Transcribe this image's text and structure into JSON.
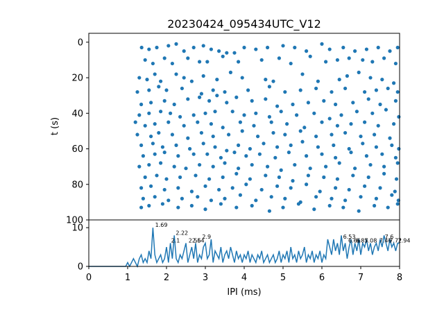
{
  "chart_data": [
    {
      "type": "scatter",
      "title": "20230424_095434UTC_V12",
      "ylabel": "t (s)",
      "xlim": [
        0,
        8
      ],
      "ylim": [
        100,
        -5
      ],
      "yticks": [
        0,
        20,
        40,
        60,
        80,
        100
      ],
      "y_inverted": true,
      "color": "#1f77b4",
      "points": [
        [
          1.36,
          3
        ],
        [
          1.55,
          4
        ],
        [
          1.75,
          3
        ],
        [
          2.05,
          2
        ],
        [
          2.25,
          1
        ],
        [
          2.45,
          5
        ],
        [
          2.7,
          3
        ],
        [
          2.95,
          2
        ],
        [
          3.15,
          4
        ],
        [
          3.35,
          5
        ],
        [
          3.55,
          6
        ],
        [
          3.75,
          6
        ],
        [
          4.0,
          3
        ],
        [
          4.3,
          4
        ],
        [
          4.6,
          3
        ],
        [
          5.0,
          2
        ],
        [
          5.3,
          3
        ],
        [
          5.6,
          5
        ],
        [
          6.0,
          1
        ],
        [
          6.2,
          4
        ],
        [
          6.55,
          3
        ],
        [
          6.85,
          5
        ],
        [
          7.15,
          4
        ],
        [
          7.45,
          3
        ],
        [
          7.75,
          5
        ],
        [
          7.95,
          3
        ],
        [
          1.45,
          10
        ],
        [
          1.65,
          12
        ],
        [
          1.95,
          9
        ],
        [
          2.15,
          12
        ],
        [
          2.55,
          9
        ],
        [
          2.85,
          11
        ],
        [
          3.05,
          11
        ],
        [
          3.45,
          8
        ],
        [
          3.85,
          11
        ],
        [
          4.45,
          10
        ],
        [
          4.9,
          9
        ],
        [
          5.2,
          12
        ],
        [
          5.7,
          8
        ],
        [
          6.1,
          11
        ],
        [
          6.4,
          10
        ],
        [
          6.7,
          9
        ],
        [
          7.05,
          10
        ],
        [
          7.3,
          11
        ],
        [
          7.6,
          9
        ],
        [
          7.9,
          12
        ],
        [
          1.3,
          20
        ],
        [
          1.5,
          21
        ],
        [
          1.7,
          18
        ],
        [
          1.85,
          22
        ],
        [
          2.25,
          18
        ],
        [
          2.45,
          20
        ],
        [
          2.65,
          22
        ],
        [
          2.95,
          19
        ],
        [
          3.3,
          21
        ],
        [
          3.65,
          17
        ],
        [
          3.95,
          20
        ],
        [
          4.55,
          21
        ],
        [
          4.75,
          22
        ],
        [
          5.5,
          18
        ],
        [
          5.9,
          22
        ],
        [
          6.45,
          21
        ],
        [
          6.65,
          19
        ],
        [
          6.95,
          17
        ],
        [
          7.25,
          20
        ],
        [
          7.55,
          21
        ],
        [
          7.85,
          23
        ],
        [
          1.25,
          28
        ],
        [
          1.55,
          27
        ],
        [
          1.8,
          25
        ],
        [
          2.0,
          27
        ],
        [
          2.4,
          26
        ],
        [
          2.9,
          29
        ],
        [
          3.2,
          27
        ],
        [
          3.5,
          28
        ],
        [
          4.1,
          27
        ],
        [
          4.65,
          25
        ],
        [
          5.05,
          28
        ],
        [
          5.45,
          27
        ],
        [
          5.85,
          26
        ],
        [
          6.25,
          28
        ],
        [
          6.6,
          26
        ],
        [
          7.1,
          28
        ],
        [
          7.4,
          27
        ],
        [
          7.7,
          26
        ],
        [
          7.95,
          28
        ],
        [
          1.35,
          35
        ],
        [
          1.6,
          34
        ],
        [
          1.95,
          33
        ],
        [
          2.2,
          35
        ],
        [
          2.55,
          32
        ],
        [
          2.85,
          31
        ],
        [
          3.1,
          33
        ],
        [
          3.3,
          30
        ],
        [
          3.55,
          34
        ],
        [
          3.8,
          31
        ],
        [
          4.2,
          33
        ],
        [
          4.55,
          32
        ],
        [
          4.85,
          36
        ],
        [
          5.25,
          35
        ],
        [
          5.65,
          34
        ],
        [
          6.05,
          33
        ],
        [
          6.35,
          35
        ],
        [
          6.8,
          34
        ],
        [
          7.2,
          32
        ],
        [
          7.5,
          35
        ],
        [
          7.9,
          33
        ],
        [
          1.3,
          41
        ],
        [
          1.55,
          40
        ],
        [
          1.85,
          39
        ],
        [
          2.1,
          40
        ],
        [
          2.35,
          42
        ],
        [
          2.7,
          41
        ],
        [
          3.0,
          40
        ],
        [
          3.25,
          39
        ],
        [
          3.7,
          39
        ],
        [
          4.0,
          41
        ],
        [
          4.3,
          40
        ],
        [
          4.65,
          42
        ],
        [
          4.95,
          39
        ],
        [
          5.35,
          41
        ],
        [
          5.8,
          40
        ],
        [
          6.2,
          43
        ],
        [
          6.5,
          41
        ],
        [
          6.9,
          39
        ],
        [
          7.3,
          40
        ],
        [
          7.65,
          38
        ],
        [
          7.98,
          42
        ],
        [
          1.2,
          45
        ],
        [
          1.45,
          47
        ],
        [
          1.7,
          46
        ],
        [
          2.05,
          45
        ],
        [
          2.45,
          47
        ],
        [
          2.8,
          45
        ],
        [
          3.15,
          46
        ],
        [
          3.45,
          48
        ],
        [
          3.9,
          45
        ],
        [
          4.25,
          47
        ],
        [
          4.7,
          45
        ],
        [
          5.1,
          46
        ],
        [
          5.55,
          48
        ],
        [
          6.0,
          45
        ],
        [
          6.4,
          47
        ],
        [
          6.75,
          46
        ],
        [
          7.1,
          45
        ],
        [
          7.45,
          47
        ],
        [
          7.85,
          46
        ],
        [
          1.25,
          52
        ],
        [
          1.6,
          53
        ],
        [
          1.8,
          51
        ],
        [
          2.15,
          52
        ],
        [
          2.55,
          54
        ],
        [
          2.9,
          51
        ],
        [
          3.2,
          53
        ],
        [
          3.6,
          52
        ],
        [
          3.95,
          50
        ],
        [
          4.35,
          53
        ],
        [
          4.75,
          51
        ],
        [
          5.05,
          52
        ],
        [
          5.45,
          50
        ],
        [
          5.85,
          53
        ],
        [
          6.25,
          52
        ],
        [
          6.6,
          51
        ],
        [
          7.0,
          53
        ],
        [
          7.35,
          52
        ],
        [
          7.75,
          54
        ],
        [
          1.35,
          58
        ],
        [
          1.65,
          57
        ],
        [
          1.9,
          59
        ],
        [
          2.25,
          58
        ],
        [
          2.6,
          60
        ],
        [
          2.95,
          57
        ],
        [
          3.25,
          59
        ],
        [
          3.55,
          61
        ],
        [
          3.85,
          58
        ],
        [
          4.15,
          60
        ],
        [
          4.5,
          57
        ],
        [
          4.85,
          59
        ],
        [
          5.2,
          58
        ],
        [
          5.5,
          56
        ],
        [
          5.9,
          59
        ],
        [
          6.3,
          58
        ],
        [
          6.7,
          60
        ],
        [
          7.05,
          57
        ],
        [
          7.4,
          59
        ],
        [
          7.8,
          58
        ],
        [
          7.98,
          60
        ],
        [
          1.4,
          64
        ],
        [
          1.7,
          63
        ],
        [
          1.95,
          62
        ],
        [
          2.3,
          64
        ],
        [
          2.7,
          63
        ],
        [
          3.05,
          63
        ],
        [
          3.4,
          65
        ],
        [
          3.75,
          62
        ],
        [
          4.05,
          64
        ],
        [
          4.4,
          63
        ],
        [
          4.8,
          65
        ],
        [
          5.15,
          62
        ],
        [
          5.6,
          64
        ],
        [
          6.0,
          63
        ],
        [
          6.35,
          65
        ],
        [
          6.75,
          62
        ],
        [
          7.15,
          64
        ],
        [
          7.55,
          63
        ],
        [
          7.9,
          65
        ],
        [
          1.3,
          70
        ],
        [
          1.55,
          69
        ],
        [
          1.85,
          68
        ],
        [
          2.2,
          70
        ],
        [
          2.5,
          71
        ],
        [
          2.85,
          69
        ],
        [
          3.2,
          70
        ],
        [
          3.5,
          68
        ],
        [
          3.85,
          71
        ],
        [
          4.2,
          69
        ],
        [
          4.6,
          70
        ],
        [
          4.95,
          72
        ],
        [
          5.3,
          69
        ],
        [
          5.7,
          71
        ],
        [
          6.1,
          70
        ],
        [
          6.45,
          68
        ],
        [
          6.85,
          71
        ],
        [
          7.25,
          69
        ],
        [
          7.6,
          70
        ],
        [
          7.95,
          68
        ],
        [
          1.45,
          76
        ],
        [
          1.75,
          75
        ],
        [
          2.0,
          77
        ],
        [
          2.35,
          76
        ],
        [
          2.75,
          75
        ],
        [
          3.1,
          77
        ],
        [
          3.45,
          76
        ],
        [
          3.8,
          74
        ],
        [
          4.15,
          77
        ],
        [
          4.55,
          75
        ],
        [
          4.9,
          76
        ],
        [
          5.25,
          78
        ],
        [
          5.65,
          75
        ],
        [
          6.05,
          76
        ],
        [
          6.4,
          77
        ],
        [
          6.8,
          75
        ],
        [
          7.2,
          76
        ],
        [
          7.6,
          74
        ],
        [
          7.92,
          77
        ],
        [
          1.35,
          82
        ],
        [
          1.6,
          81
        ],
        [
          1.95,
          83
        ],
        [
          2.3,
          82
        ],
        [
          2.65,
          84
        ],
        [
          3.0,
          81
        ],
        [
          3.35,
          83
        ],
        [
          3.7,
          82
        ],
        [
          4.05,
          80
        ],
        [
          4.45,
          83
        ],
        [
          4.85,
          81
        ],
        [
          5.2,
          82
        ],
        [
          5.6,
          80
        ],
        [
          5.95,
          84
        ],
        [
          6.35,
          82
        ],
        [
          6.7,
          83
        ],
        [
          7.1,
          81
        ],
        [
          7.5,
          82
        ],
        [
          7.88,
          84
        ],
        [
          1.4,
          88
        ],
        [
          1.7,
          87
        ],
        [
          2.05,
          89
        ],
        [
          2.4,
          88
        ],
        [
          2.8,
          87
        ],
        [
          3.15,
          89
        ],
        [
          3.5,
          88
        ],
        [
          3.9,
          86
        ],
        [
          4.3,
          89
        ],
        [
          4.7,
          87
        ],
        [
          5.05,
          88
        ],
        [
          5.45,
          90
        ],
        [
          5.85,
          87
        ],
        [
          6.25,
          88
        ],
        [
          6.6,
          89
        ],
        [
          7.0,
          87
        ],
        [
          7.4,
          88
        ],
        [
          7.8,
          86
        ],
        [
          7.97,
          89
        ],
        [
          1.35,
          93
        ],
        [
          1.55,
          92
        ],
        [
          1.9,
          91
        ],
        [
          2.3,
          93
        ],
        [
          2.65,
          92
        ],
        [
          3.0,
          94
        ],
        [
          3.4,
          91
        ],
        [
          3.8,
          93
        ],
        [
          4.2,
          92
        ],
        [
          4.65,
          95
        ],
        [
          5.0,
          93
        ],
        [
          5.4,
          91
        ],
        [
          5.8,
          94
        ],
        [
          6.2,
          92
        ],
        [
          6.55,
          93
        ],
        [
          6.95,
          95
        ],
        [
          7.35,
          92
        ],
        [
          7.7,
          93
        ],
        [
          7.95,
          91
        ]
      ]
    },
    {
      "type": "line",
      "xlabel": "IPI (ms)",
      "xlim": [
        0,
        8
      ],
      "ylim": [
        0,
        12
      ],
      "xticks": [
        0,
        1,
        2,
        3,
        4,
        5,
        6,
        7,
        8
      ],
      "yticks": [
        0,
        10
      ],
      "color": "#1f77b4",
      "x_step": 0.05,
      "values": [
        0,
        0,
        0,
        0,
        0,
        0,
        0,
        0,
        0,
        0,
        0,
        0,
        0,
        0,
        0,
        0,
        0,
        0,
        0,
        0,
        1,
        0,
        1,
        2,
        1,
        0,
        2,
        3,
        1,
        2,
        1,
        4,
        2,
        10,
        3,
        1,
        2,
        3,
        1,
        2,
        5,
        1,
        6,
        2,
        8,
        2,
        1,
        3,
        2,
        4,
        6,
        1,
        3,
        5,
        2,
        6,
        1,
        3,
        2,
        5,
        6,
        2,
        3,
        7,
        1,
        4,
        3,
        2,
        5,
        1,
        3,
        4,
        2,
        5,
        3,
        1,
        4,
        2,
        3,
        1,
        3,
        2,
        4,
        1,
        3,
        2,
        1,
        3,
        2,
        4,
        1,
        2,
        3,
        1,
        2,
        3,
        1,
        2,
        4,
        1,
        3,
        2,
        4,
        1,
        5,
        2,
        3,
        1,
        4,
        2,
        3,
        5,
        1,
        3,
        2,
        4,
        1,
        3,
        2,
        4,
        1,
        3,
        2,
        7,
        5,
        3,
        7,
        4,
        6,
        3,
        8,
        4,
        6,
        2,
        5,
        7,
        3,
        6,
        4,
        7,
        3,
        6,
        5,
        7,
        4,
        6,
        3,
        5,
        6,
        4,
        7,
        5,
        8,
        6,
        4,
        7,
        5,
        6,
        4,
        6,
        6
      ],
      "peak_labels": [
        {
          "x": 1.69,
          "y": 10.0,
          "text": "1.69"
        },
        {
          "x": 2.22,
          "y": 8.0,
          "text": "2.22"
        },
        {
          "x": 2.1,
          "y": 6.0,
          "text": "2.1"
        },
        {
          "x": 2.55,
          "y": 6.0,
          "text": "2.55"
        },
        {
          "x": 2.9,
          "y": 7.0,
          "text": "2.9"
        },
        {
          "x": 2.64,
          "y": 6.0,
          "text": "2.64"
        },
        {
          "x": 6.53,
          "y": 7.0,
          "text": "6.53"
        },
        {
          "x": 6.66,
          "y": 6.0,
          "text": "6.66"
        },
        {
          "x": 6.85,
          "y": 6.0,
          "text": "6.85"
        },
        {
          "x": 7.08,
          "y": 6.0,
          "text": "7.08"
        },
        {
          "x": 7.46,
          "y": 6.0,
          "text": "7.46"
        },
        {
          "x": 7.6,
          "y": 7.0,
          "text": "7.6"
        },
        {
          "x": 7.72,
          "y": 6.0,
          "text": "7.72"
        },
        {
          "x": 7.94,
          "y": 6.0,
          "text": "7.94"
        }
      ]
    }
  ]
}
